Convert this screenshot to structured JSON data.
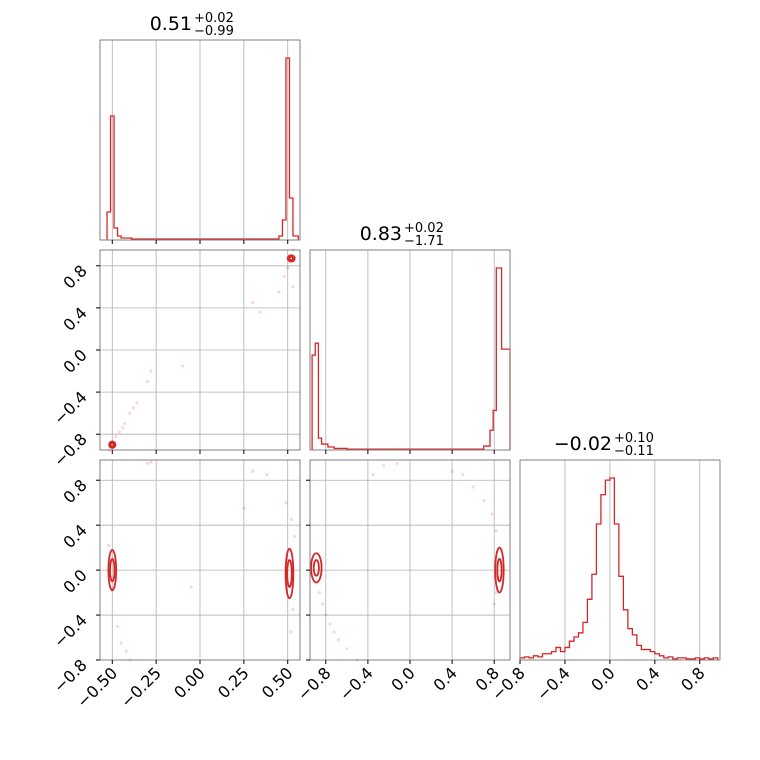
{
  "chart_data": {
    "type": "corner",
    "color": "#d62728",
    "grid": true,
    "parameters": [
      {
        "title_value": "0.51",
        "plus": "+0.02",
        "minus": "−0.99",
        "range": [
          -0.57,
          0.57
        ],
        "ticks": [
          -0.5,
          -0.25,
          0.0,
          0.25,
          0.5
        ],
        "tick_labels": [
          "−0.50",
          "−0.25",
          "0.00",
          "0.25",
          "0.50"
        ]
      },
      {
        "title_value": "0.83",
        "plus": "+0.02",
        "minus": "−1.71",
        "range": [
          -0.95,
          0.95
        ],
        "ticks": [
          -0.8,
          -0.4,
          0.0,
          0.4,
          0.8
        ],
        "tick_labels": [
          "−0.8",
          "−0.4",
          "0.0",
          "0.4",
          "0.8"
        ]
      },
      {
        "title_value": "−0.02",
        "plus": "+0.10",
        "minus": "−0.11",
        "range": [
          -0.8,
          0.98
        ],
        "ticks": [
          -0.8,
          -0.4,
          0.0,
          0.4,
          0.8
        ],
        "tick_labels": [
          "−0.8",
          "−0.4",
          "0.0",
          "0.4",
          "0.8"
        ]
      }
    ],
    "histograms": [
      {
        "param": 0,
        "bins": [
          [
            -0.53,
            -0.51,
            0.14
          ],
          [
            -0.51,
            -0.49,
            0.62
          ],
          [
            -0.49,
            -0.47,
            0.06
          ],
          [
            -0.47,
            -0.45,
            0.02
          ],
          [
            -0.45,
            -0.43,
            0.01
          ],
          [
            -0.43,
            -0.41,
            0.01
          ],
          [
            -0.41,
            -0.39,
            0.01
          ],
          [
            -0.39,
            0.45,
            0.005
          ],
          [
            0.45,
            0.47,
            0.02
          ],
          [
            0.47,
            0.49,
            0.1
          ],
          [
            0.49,
            0.51,
            0.91
          ],
          [
            0.51,
            0.53,
            0.21
          ],
          [
            0.53,
            0.56,
            0.02
          ]
        ]
      },
      {
        "param": 1,
        "bins": [
          [
            -0.93,
            -0.9,
            0.48
          ],
          [
            -0.9,
            -0.87,
            0.54
          ],
          [
            -0.87,
            -0.84,
            0.06
          ],
          [
            -0.84,
            -0.78,
            0.03
          ],
          [
            -0.78,
            -0.72,
            0.015
          ],
          [
            -0.72,
            -0.6,
            0.008
          ],
          [
            -0.6,
            0.7,
            0.004
          ],
          [
            0.7,
            0.76,
            0.02
          ],
          [
            0.76,
            0.79,
            0.1
          ],
          [
            0.79,
            0.82,
            0.2
          ],
          [
            0.82,
            0.87,
            0.92
          ],
          [
            0.87,
            0.95,
            0.51
          ]
        ]
      },
      {
        "param": 2,
        "bins": [
          [
            -0.8,
            -0.76,
            0.01
          ],
          [
            -0.76,
            -0.72,
            0.015
          ],
          [
            -0.72,
            -0.68,
            0.01
          ],
          [
            -0.68,
            -0.64,
            0.02
          ],
          [
            -0.64,
            -0.6,
            0.015
          ],
          [
            -0.6,
            -0.56,
            0.03
          ],
          [
            -0.56,
            -0.52,
            0.03
          ],
          [
            -0.52,
            -0.48,
            0.04
          ],
          [
            -0.48,
            -0.44,
            0.06
          ],
          [
            -0.44,
            -0.4,
            0.04
          ],
          [
            -0.4,
            -0.36,
            0.06
          ],
          [
            -0.36,
            -0.32,
            0.09
          ],
          [
            -0.32,
            -0.28,
            0.11
          ],
          [
            -0.28,
            -0.24,
            0.13
          ],
          [
            -0.24,
            -0.2,
            0.18
          ],
          [
            -0.2,
            -0.16,
            0.29
          ],
          [
            -0.16,
            -0.12,
            0.41
          ],
          [
            -0.12,
            -0.08,
            0.65
          ],
          [
            -0.08,
            -0.04,
            0.79
          ],
          [
            -0.04,
            0.0,
            0.86
          ],
          [
            0.0,
            0.04,
            0.87
          ],
          [
            0.04,
            0.08,
            0.65
          ],
          [
            0.08,
            0.12,
            0.4
          ],
          [
            0.12,
            0.16,
            0.24
          ],
          [
            0.16,
            0.2,
            0.15
          ],
          [
            0.2,
            0.24,
            0.12
          ],
          [
            0.24,
            0.28,
            0.07
          ],
          [
            0.28,
            0.32,
            0.05
          ],
          [
            0.32,
            0.36,
            0.05
          ],
          [
            0.36,
            0.4,
            0.04
          ],
          [
            0.4,
            0.44,
            0.03
          ],
          [
            0.44,
            0.48,
            0.02
          ],
          [
            0.48,
            0.52,
            0.01
          ],
          [
            0.52,
            0.56,
            0.015
          ],
          [
            0.56,
            0.6,
            0.005
          ],
          [
            0.6,
            0.64,
            0.01
          ],
          [
            0.64,
            0.68,
            0.01
          ],
          [
            0.68,
            0.72,
            0.005
          ],
          [
            0.72,
            0.76,
            0.005
          ],
          [
            0.76,
            0.8,
            0.01
          ],
          [
            0.8,
            0.84,
            0.005
          ],
          [
            0.84,
            0.88,
            0.01
          ],
          [
            0.88,
            0.92,
            0.005
          ],
          [
            0.92,
            0.96,
            0.01
          ]
        ]
      }
    ],
    "joint": [
      {
        "x_param": 0,
        "y_param": 1,
        "contours": [
          {
            "cx": -0.5,
            "cy": -0.9,
            "rx": 0.018,
            "ry": 0.03
          },
          {
            "cx": -0.5,
            "cy": -0.9,
            "rx": 0.01,
            "ry": 0.015
          },
          {
            "cx": 0.52,
            "cy": 0.87,
            "rx": 0.02,
            "ry": 0.03
          },
          {
            "cx": 0.52,
            "cy": 0.87,
            "rx": 0.01,
            "ry": 0.015
          }
        ],
        "points": [
          [
            -0.48,
            -0.82
          ],
          [
            -0.46,
            -0.78
          ],
          [
            -0.44,
            -0.74
          ],
          [
            -0.43,
            -0.7
          ],
          [
            -0.4,
            -0.6
          ],
          [
            -0.38,
            -0.55
          ],
          [
            -0.36,
            -0.5
          ],
          [
            -0.3,
            -0.3
          ],
          [
            -0.28,
            -0.2
          ],
          [
            -0.1,
            -0.15
          ],
          [
            0.3,
            0.45
          ],
          [
            0.34,
            0.36
          ],
          [
            0.45,
            0.55
          ],
          [
            0.48,
            0.7
          ],
          [
            0.5,
            0.78
          ],
          [
            0.53,
            0.6
          ],
          [
            -0.52,
            -0.95
          ],
          [
            0.53,
            0.95
          ]
        ]
      },
      {
        "x_param": 0,
        "y_param": 2,
        "contours": [
          {
            "cx": -0.5,
            "cy": 0.0,
            "rx": 0.022,
            "ry": 0.18
          },
          {
            "cx": -0.5,
            "cy": 0.0,
            "rx": 0.013,
            "ry": 0.1
          },
          {
            "cx": 0.51,
            "cy": -0.03,
            "rx": 0.022,
            "ry": 0.22
          },
          {
            "cx": 0.51,
            "cy": -0.03,
            "rx": 0.013,
            "ry": 0.12
          }
        ],
        "points": [
          [
            -0.47,
            -0.5
          ],
          [
            -0.45,
            -0.65
          ],
          [
            -0.42,
            -0.72
          ],
          [
            -0.4,
            -0.8
          ],
          [
            -0.3,
            0.95
          ],
          [
            -0.28,
            0.96
          ],
          [
            -0.05,
            -0.15
          ],
          [
            0.25,
            0.55
          ],
          [
            0.3,
            0.88
          ],
          [
            0.38,
            0.85
          ],
          [
            0.49,
            0.6
          ],
          [
            0.52,
            0.45
          ],
          [
            0.53,
            -0.35
          ],
          [
            0.52,
            -0.55
          ],
          [
            -0.52,
            0.22
          ],
          [
            0.54,
            0.3
          ]
        ]
      },
      {
        "x_param": 1,
        "y_param": 2,
        "contours": [
          {
            "cx": -0.89,
            "cy": 0.02,
            "rx": 0.05,
            "ry": 0.13
          },
          {
            "cx": -0.89,
            "cy": 0.02,
            "rx": 0.025,
            "ry": 0.07
          },
          {
            "cx": 0.85,
            "cy": 0.0,
            "rx": 0.04,
            "ry": 0.2
          },
          {
            "cx": 0.85,
            "cy": 0.0,
            "rx": 0.02,
            "ry": 0.1
          }
        ],
        "points": [
          [
            -0.86,
            -0.2
          ],
          [
            -0.83,
            -0.3
          ],
          [
            -0.8,
            -0.4
          ],
          [
            -0.76,
            -0.48
          ],
          [
            -0.72,
            -0.55
          ],
          [
            -0.68,
            -0.62
          ],
          [
            -0.6,
            -0.7
          ],
          [
            -0.5,
            -0.8
          ],
          [
            -0.35,
            0.85
          ],
          [
            -0.25,
            0.93
          ],
          [
            -0.12,
            0.95
          ],
          [
            0.4,
            0.88
          ],
          [
            0.5,
            0.85
          ],
          [
            0.6,
            0.74
          ],
          [
            0.7,
            0.62
          ],
          [
            0.78,
            0.5
          ],
          [
            0.82,
            0.35
          ],
          [
            0.82,
            -0.2
          ],
          [
            0.8,
            -0.3
          ]
        ]
      }
    ]
  }
}
